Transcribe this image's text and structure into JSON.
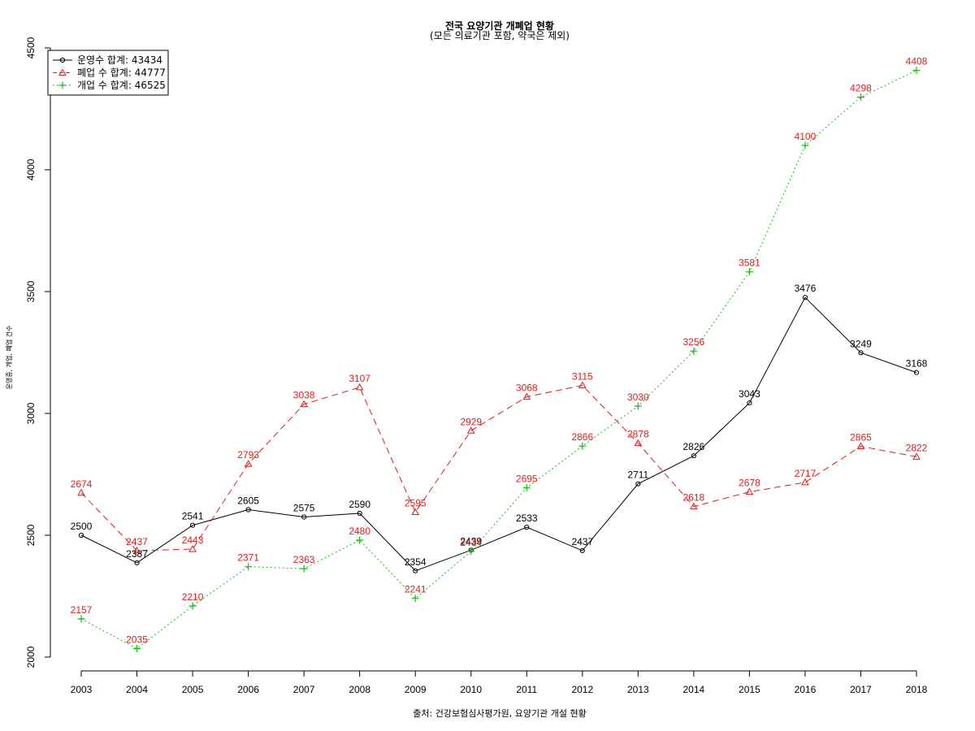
{
  "chart_data": {
    "type": "line",
    "title": "전국 요양기관 개폐업 현황",
    "subtitle": "(모든 의료기관 포함, 약국은 제외)",
    "xlabel": "출처: 건강보험심사평가원, 요양기관 개설 현황",
    "ylabel": "운영중, 개업, 폐업 건수",
    "x": [
      2003,
      2004,
      2005,
      2006,
      2007,
      2008,
      2009,
      2010,
      2011,
      2012,
      2013,
      2014,
      2015,
      2016,
      2017,
      2018
    ],
    "ylim": [
      2000,
      4500
    ],
    "yticks": [
      2000,
      2500,
      3000,
      3500,
      4000,
      4500
    ],
    "grid": false,
    "legend_position": "top-left",
    "series": [
      {
        "name": "운영수 합계: 43434",
        "color": "#000000",
        "line": "solid",
        "marker": "circle",
        "values": [
          2500,
          2387,
          2541,
          2605,
          2575,
          2590,
          2354,
          2439,
          2533,
          2437,
          2711,
          2826,
          3043,
          3476,
          3249,
          3168
        ]
      },
      {
        "name": "폐업 수 합계: 44777",
        "color": "#df1c1c",
        "line": "dashed",
        "marker": "triangle",
        "values": [
          2674,
          2437,
          2443,
          2793,
          3038,
          3107,
          2595,
          2929,
          3068,
          3115,
          2878,
          2618,
          2678,
          2717,
          2865,
          2822
        ]
      },
      {
        "name": "개업 수 합계: 46525",
        "color": "#19b919",
        "line": "dotted",
        "marker": "plus",
        "values": [
          2157,
          2035,
          2210,
          2371,
          2363,
          2480,
          2241,
          2434,
          2695,
          2866,
          3030,
          3256,
          3581,
          4100,
          4298,
          4408
        ]
      }
    ],
    "data_label_color": "#df1c1c"
  }
}
